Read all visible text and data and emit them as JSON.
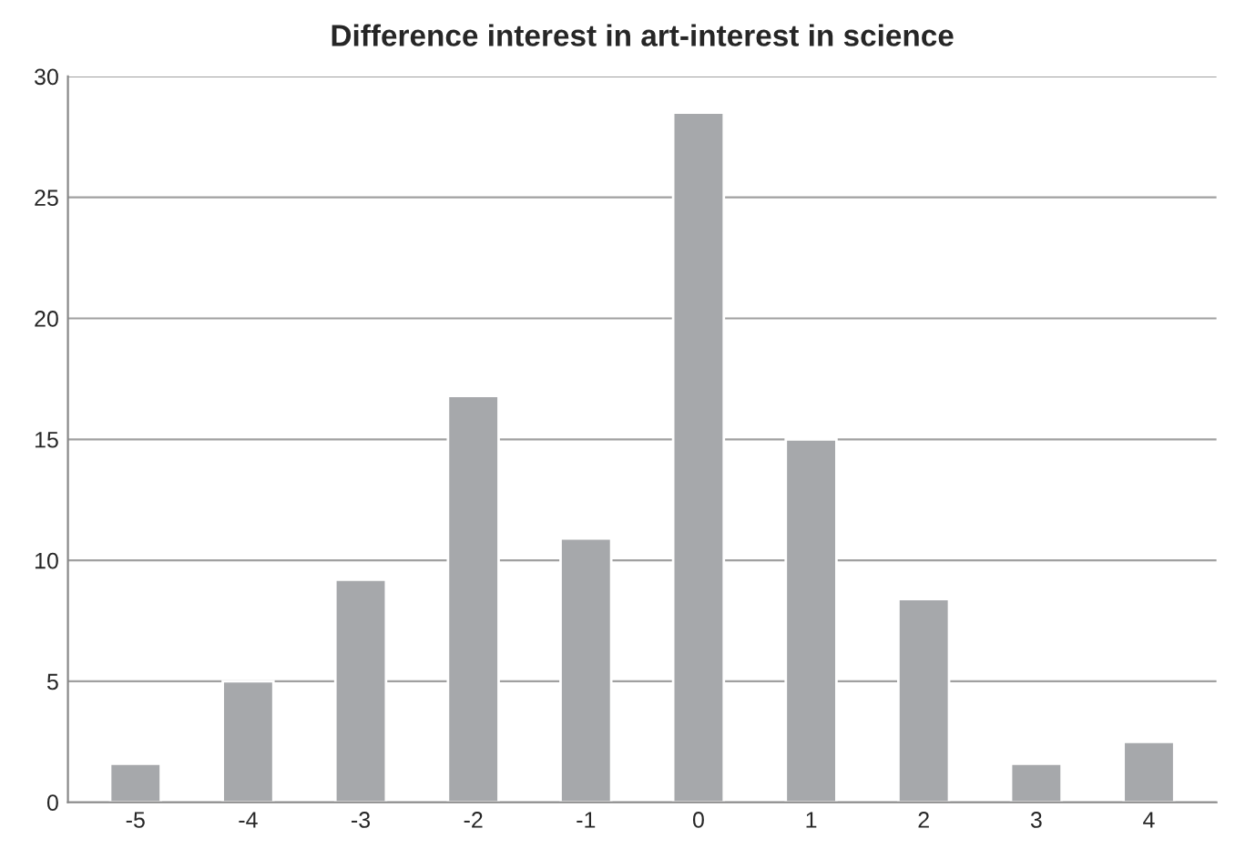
{
  "chart_data": {
    "type": "bar",
    "title": "Difference interest in art-interest in science",
    "categories": [
      "-5",
      "-4",
      "-3",
      "-2",
      "-1",
      "0",
      "1",
      "2",
      "3",
      "4"
    ],
    "values": [
      1.6,
      5.0,
      9.2,
      16.8,
      10.9,
      28.5,
      15.0,
      8.4,
      1.6,
      2.5
    ],
    "color": "#a6a8ab",
    "ylim": [
      0,
      30
    ],
    "yticks": [
      0,
      5,
      10,
      15,
      20,
      25,
      30
    ],
    "grid": "y"
  }
}
